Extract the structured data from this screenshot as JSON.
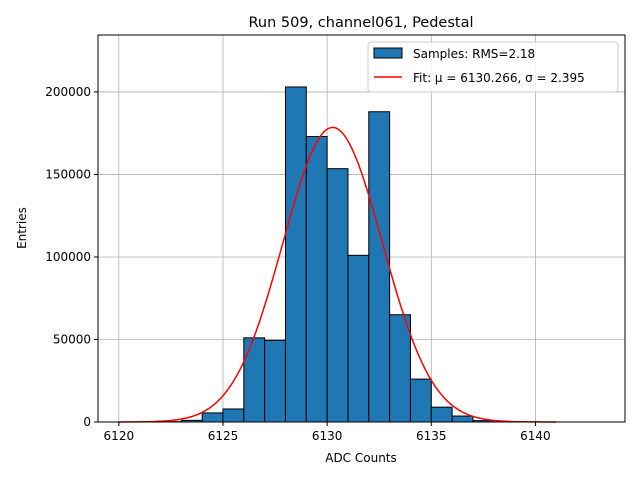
{
  "chart_data": {
    "type": "bar",
    "title": "Run 509, channel061, Pedestal",
    "xlabel": "ADC Counts",
    "ylabel": "Entries",
    "xlim": [
      6119,
      6144.3
    ],
    "ylim": [
      0,
      234500
    ],
    "xticks": [
      6120,
      6125,
      6130,
      6135,
      6140
    ],
    "yticks": [
      0,
      50000,
      100000,
      150000,
      200000
    ],
    "grid": true,
    "legend_position": "top-right",
    "bin_edges": [
      6120,
      6121,
      6122,
      6123,
      6124,
      6125,
      6126,
      6127,
      6128,
      6129,
      6130,
      6131,
      6132,
      6133,
      6134,
      6135,
      6136,
      6137,
      6138,
      6139,
      6140
    ],
    "values": [
      0,
      0,
      200,
      1000,
      5500,
      7900,
      51000,
      49500,
      203000,
      173000,
      153500,
      101000,
      188000,
      65000,
      26000,
      9000,
      3600,
      800,
      100,
      0
    ],
    "bar_color": "#1f77b4",
    "fit": {
      "mu": 6130.266,
      "sigma": 2.395,
      "amplitude": 178500,
      "range": [
        6120,
        6141
      ],
      "color": "#ff0000"
    },
    "legend": [
      {
        "label": "Samples: RMS=2.18",
        "kind": "patch"
      },
      {
        "label": "Fit: μ = 6130.266, σ = 2.395",
        "kind": "line"
      }
    ]
  }
}
